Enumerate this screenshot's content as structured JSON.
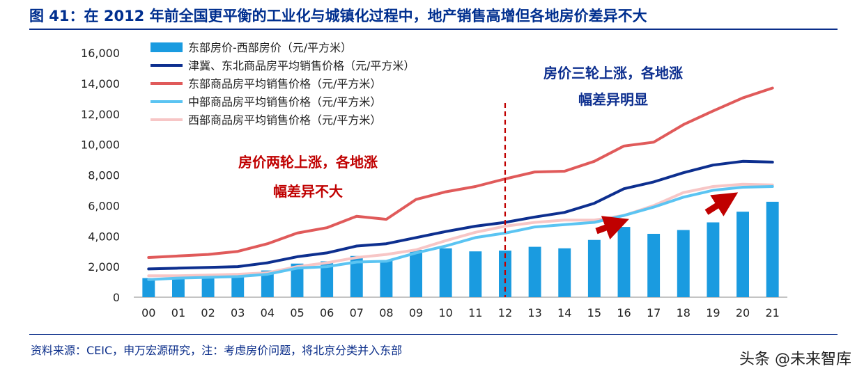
{
  "header": {
    "title": "图 41：在 2012 年前全国更平衡的工业化与城镇化过程中，地产销售高增但各地房价差异不大"
  },
  "footer": {
    "source": "资料来源：CEIC，申万宏源研究，注：考虑房价问题，将北京分类并入东部",
    "watermark": "头条 @未来智库"
  },
  "chart_data": {
    "type": "bar",
    "categories": [
      "00",
      "01",
      "02",
      "03",
      "04",
      "05",
      "06",
      "07",
      "08",
      "09",
      "10",
      "11",
      "12",
      "13",
      "14",
      "15",
      "16",
      "17",
      "18",
      "19",
      "20",
      "21"
    ],
    "ylim": [
      0,
      16000
    ],
    "yticks": [
      "0",
      "2,000",
      "4,000",
      "6,000",
      "8,000",
      "10,000",
      "12,000",
      "14,000",
      "16,000"
    ],
    "grid": false,
    "legend_position": "top-left",
    "series": [
      {
        "name": "东部房价-西部房价（元/平方米）",
        "type": "bar",
        "color": "#1a9be0",
        "values": [
          1250,
          1200,
          1300,
          1350,
          1750,
          2200,
          2350,
          2700,
          2400,
          3100,
          3200,
          3000,
          3050,
          3300,
          3200,
          3750,
          4600,
          4150,
          4400,
          4900,
          5600,
          6250
        ]
      },
      {
        "name": "津冀、东北商品房平均销售价格（元/平方米）",
        "type": "line",
        "color": "#0d2f8f",
        "values": [
          1850,
          1900,
          1950,
          2000,
          2250,
          2650,
          2900,
          3350,
          3500,
          3900,
          4300,
          4650,
          4900,
          5250,
          5550,
          6150,
          7100,
          7550,
          8150,
          8650,
          8900,
          8850
        ]
      },
      {
        "name": "东部商品房平均销售价格（元/平方米）",
        "type": "line",
        "color": "#e05a5a",
        "values": [
          2600,
          2700,
          2800,
          3000,
          3500,
          4200,
          4550,
          5300,
          5100,
          6400,
          6900,
          7250,
          7750,
          8200,
          8250,
          8900,
          9900,
          10150,
          11300,
          12200,
          13050,
          13700
        ]
      },
      {
        "name": "中部商品房平均销售价格（元/平方米）",
        "type": "line",
        "color": "#5bc4f2",
        "values": [
          1150,
          1250,
          1300,
          1350,
          1500,
          1900,
          2000,
          2300,
          2350,
          2900,
          3350,
          3900,
          4200,
          4600,
          4750,
          4900,
          5350,
          5900,
          6550,
          7000,
          7200,
          7250
        ]
      },
      {
        "name": "西部商品房平均销售价格（元/平方米）",
        "type": "line",
        "color": "#f7c6c6",
        "values": [
          1400,
          1400,
          1450,
          1500,
          1600,
          2000,
          2250,
          2600,
          2800,
          3100,
          3700,
          4250,
          4650,
          4900,
          5050,
          5050,
          5350,
          6000,
          6850,
          7250,
          7400,
          7350
        ]
      }
    ],
    "divider_at": "12",
    "annotations": [
      {
        "text": "房价两轮上涨，各地涨",
        "color": "#c00000"
      },
      {
        "text": "幅差异不大",
        "color": "#c00000"
      },
      {
        "text": "房价三轮上涨，各地涨",
        "color": "#0d2f8f"
      },
      {
        "text": "幅差异明显",
        "color": "#0d2f8f"
      }
    ],
    "arrow_color": "#c00000"
  }
}
